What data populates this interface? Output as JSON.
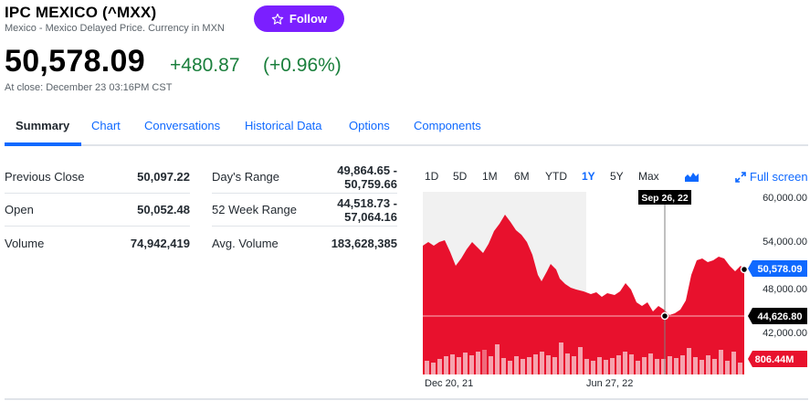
{
  "header": {
    "title": "IPC MEXICO (^MXX)",
    "subtitle": "Mexico - Mexico Delayed Price. Currency in MXN",
    "follow_label": "Follow"
  },
  "quote": {
    "price": "50,578.09",
    "change": "+480.87",
    "change_pct": "(+0.96%)",
    "close_time": "At close: December 23 03:16PM CST"
  },
  "tabs": [
    {
      "label": "Summary",
      "active": true
    },
    {
      "label": "Chart"
    },
    {
      "label": "Conversations"
    },
    {
      "label": "Historical Data"
    },
    {
      "label": "Options"
    },
    {
      "label": "Components"
    }
  ],
  "stats_left": [
    {
      "label": "Previous Close",
      "value": "50,097.22"
    },
    {
      "label": "Open",
      "value": "50,052.48"
    },
    {
      "label": "Volume",
      "value": "74,942,419"
    }
  ],
  "stats_right": [
    {
      "label": "Day's Range",
      "value_line1": "49,864.65 -",
      "value_line2": "50,759.66"
    },
    {
      "label": "52 Week Range",
      "value_line1": "44,518.73 -",
      "value_line2": "57,064.16"
    },
    {
      "label": "Avg. Volume",
      "value_line1": "183,628,385",
      "value_line2": ""
    }
  ],
  "chart": {
    "ranges": [
      "1D",
      "5D",
      "1M",
      "6M",
      "YTD",
      "1Y",
      "5Y",
      "Max"
    ],
    "active_range": "1Y",
    "fullscreen_label": "Full screen",
    "crosshair_date": "Sep 26, 22",
    "y_ticks": [
      "60,000.00",
      "54,000.00",
      "48,000.00",
      "42,000.00"
    ],
    "x_ticks": [
      "Dec 20, 21",
      "Jun 27, 22"
    ],
    "current_price_label": "50,578.09",
    "crosshair_price_label": "44,626.80",
    "volume_label": "806.44M",
    "colors": {
      "area": "#e8112d",
      "volume": "#f5a3ae",
      "volume_strong": "#ef6a7c",
      "price_tag": "#0f69ff",
      "crosshair_tag": "#000000",
      "volume_tag": "#e8112d"
    }
  }
}
